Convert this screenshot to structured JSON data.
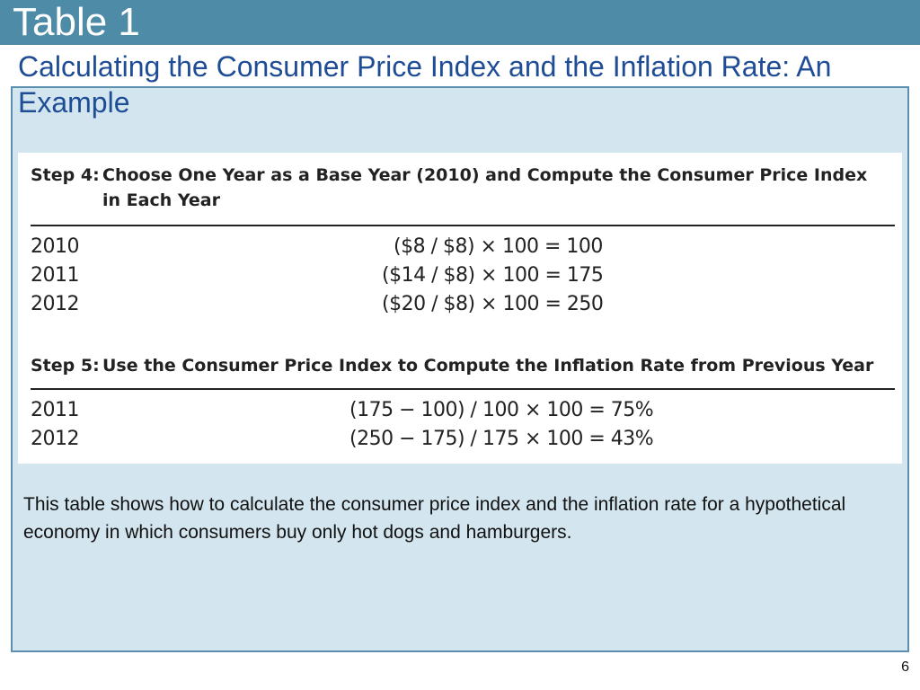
{
  "slide": {
    "title": "Table 1",
    "subtitle": "Calculating the Consumer Price Index and the Inflation Rate: An Example",
    "page_number": "6",
    "caption": "This table shows how to calculate the consumer price index and the inflation rate for a hypothetical economy in which consumers buy only hot dogs and hamburgers."
  },
  "table": {
    "step4": {
      "label": "Step 4:",
      "heading_line1": "Choose One Year as a Base Year (2010) and Compute the Consumer Price Index",
      "heading_line2": "in Each Year",
      "rows": [
        {
          "year": "2010",
          "calc": "($8 / $8) × 100 = 100"
        },
        {
          "year": "2011",
          "calc": "($14 / $8) × 100 = 175"
        },
        {
          "year": "2012",
          "calc": "($20 / $8) × 100 = 250"
        }
      ]
    },
    "step5": {
      "label": "Step 5:",
      "heading_line1": "Use the Consumer Price Index to Compute the Inflation Rate from Previous Year",
      "rows": [
        {
          "year": "2011",
          "calc": "(175 − 100) / 100 × 100 = 75%"
        },
        {
          "year": "2012",
          "calc": "(250 − 175) / 175 × 100 = 43%"
        }
      ]
    }
  },
  "colors": {
    "title_bar": "#4e8ba7",
    "subtitle_text": "#1e4d96",
    "panel_bg": "#d3e5ee",
    "panel_border": "#5a8fb0"
  }
}
